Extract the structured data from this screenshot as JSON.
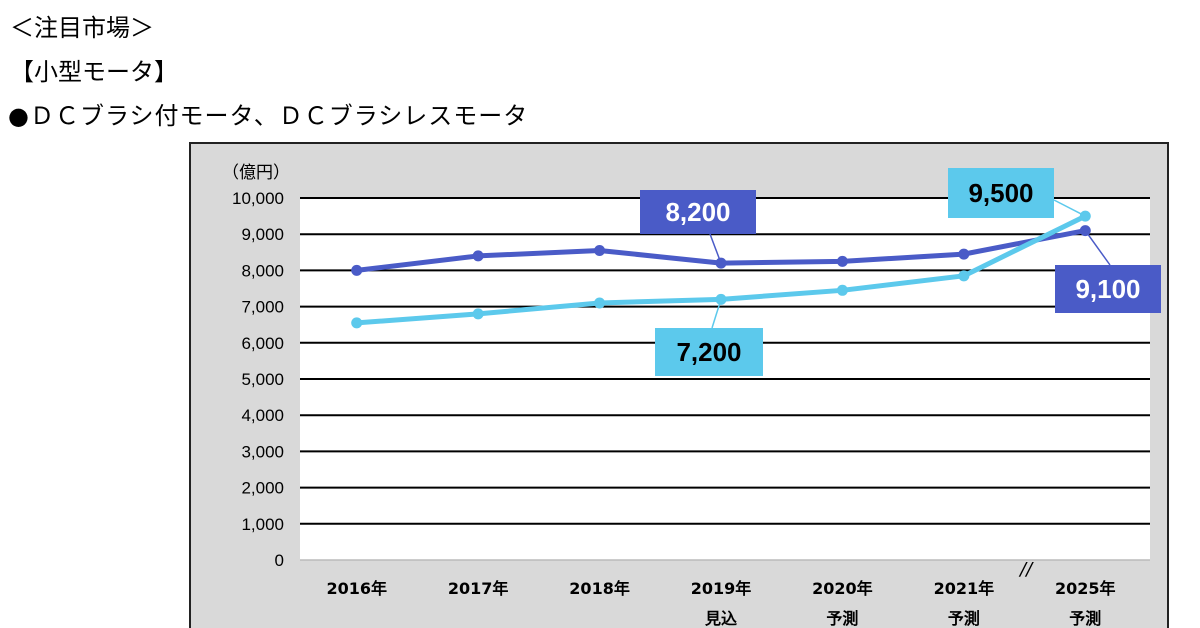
{
  "header": {
    "section": "＜注目市場＞",
    "category": "【小型モータ】",
    "subtitle": "●ＤＣブラシ付モータ、ＤＣブラシレスモータ"
  },
  "chart_data": {
    "type": "line",
    "title": "",
    "ylabel": "（億円）",
    "xlabel": "",
    "ylim": [
      0,
      10000
    ],
    "yticks": [
      0,
      1000,
      2000,
      3000,
      4000,
      5000,
      6000,
      7000,
      8000,
      9000,
      10000
    ],
    "ytick_labels": [
      "0",
      "1,000",
      "2,000",
      "3,000",
      "4,000",
      "5,000",
      "6,000",
      "7,000",
      "8,000",
      "9,000",
      "10,000"
    ],
    "categories": [
      {
        "year": "2016年",
        "note": ""
      },
      {
        "year": "2017年",
        "note": ""
      },
      {
        "year": "2018年",
        "note": ""
      },
      {
        "year": "2019年",
        "note": "見込"
      },
      {
        "year": "2020年",
        "note": "予測"
      },
      {
        "year": "2021年",
        "note": "予測"
      },
      {
        "year": "2025年",
        "note": "予測"
      }
    ],
    "axis_break_symbol": "//",
    "grid": true,
    "series": [
      {
        "name": "series-dark",
        "color": "#4a5bc7",
        "values": [
          8000,
          8400,
          8550,
          8200,
          8250,
          8450,
          9100
        ]
      },
      {
        "name": "series-light",
        "color": "#5cc9ec",
        "values": [
          6550,
          6800,
          7100,
          7200,
          7450,
          7850,
          9500
        ]
      }
    ],
    "annotations": [
      {
        "series": 0,
        "index": 3,
        "text": "8,200",
        "bg": "#4a5bc7",
        "fg": "#ffffff"
      },
      {
        "series": 0,
        "index": 6,
        "text": "9,100",
        "bg": "#4a5bc7",
        "fg": "#ffffff"
      },
      {
        "series": 1,
        "index": 3,
        "text": "7,200",
        "bg": "#5cc9ec",
        "fg": "#000000"
      },
      {
        "series": 1,
        "index": 6,
        "text": "9,500",
        "bg": "#5cc9ec",
        "fg": "#000000"
      }
    ]
  }
}
